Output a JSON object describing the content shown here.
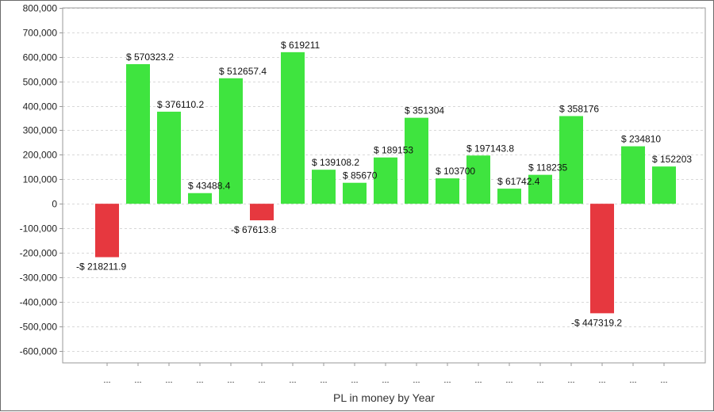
{
  "chart_data": {
    "type": "bar",
    "title": "",
    "xlabel": "PL in money by Year",
    "ylabel": "",
    "ylim": [
      -650000,
      800000
    ],
    "yticks": [
      800000,
      700000,
      600000,
      500000,
      400000,
      300000,
      200000,
      100000,
      0,
      -100000,
      -200000,
      -300000,
      -400000,
      -500000,
      -600000
    ],
    "ytick_labels": [
      "800,000",
      "700,000",
      "600,000",
      "500,000",
      "400,000",
      "300,000",
      "200,000",
      "100,000",
      "0",
      "-100,000",
      "-200,000",
      "-300,000",
      "-400,000",
      "-500,000",
      "-600,000"
    ],
    "grid": true,
    "legend": "none",
    "categories": [
      "...",
      "...",
      "...",
      "...",
      "...",
      "...",
      "...",
      "...",
      "...",
      "...",
      "...",
      "...",
      "...",
      "...",
      "...",
      "...",
      "...",
      "...",
      "..."
    ],
    "values": [
      -218211.9,
      570323.2,
      376110.2,
      43488.4,
      512657.4,
      -67613.8,
      619211,
      139108.2,
      85670,
      189153,
      351304,
      103700,
      197143.8,
      61742.4,
      118235,
      358176,
      -447319.2,
      234810,
      152203
    ],
    "data_labels": [
      "-$ 218211.9",
      "$ 570323.2",
      "$ 376110.2",
      "$ 43488.4",
      "$ 512657.4",
      "-$ 67613.8",
      "$ 619211",
      "$ 139108.2",
      "$ 85670",
      "$ 189153",
      "$ 351304",
      "$ 103700",
      "$ 197143.8",
      "$ 61742.4",
      "$ 118235",
      "$ 358176",
      "-$ 447319.2",
      "$ 234810",
      "$ 152203"
    ],
    "colors": {
      "positive": "#3fe43f",
      "negative": "#e6383f",
      "grid": "#d8d8d8",
      "axis": "#999999"
    }
  }
}
